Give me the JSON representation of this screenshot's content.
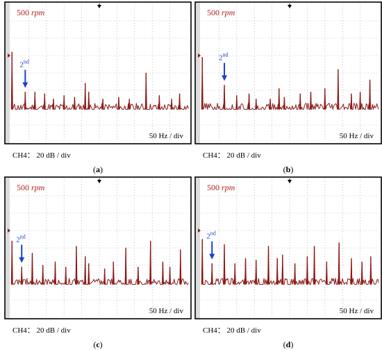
{
  "colors": {
    "trace": "#8b1a1a",
    "rpm_text": "#b41e1e",
    "annotation": "#1a3fd6",
    "grid": "#9a9a9a",
    "frame": "#000000"
  },
  "chart_data": [
    {
      "type": "line",
      "panel": "(a)",
      "rpm_label": "500 rpm",
      "annotation": "2nd",
      "x_scale_label": "50 Hz / div",
      "y_scale_label": "CH4： 20 dB / div",
      "grid": true,
      "x_divisions": 10,
      "y_divisions": 8,
      "baseline_div": 1.9,
      "spikes": [
        {
          "x": 0.05,
          "h": 3.3
        },
        {
          "x": 0.8,
          "h": 1.0
        },
        {
          "x": 1.35,
          "h": 1.0
        },
        {
          "x": 1.9,
          "h": 0.9
        },
        {
          "x": 2.4,
          "h": 0.6
        },
        {
          "x": 3.0,
          "h": 0.8
        },
        {
          "x": 3.6,
          "h": 0.7
        },
        {
          "x": 4.2,
          "h": 1.5
        },
        {
          "x": 4.4,
          "h": 1.0
        },
        {
          "x": 5.2,
          "h": 0.6
        },
        {
          "x": 6.1,
          "h": 0.7
        },
        {
          "x": 6.7,
          "h": 0.6
        },
        {
          "x": 7.65,
          "h": 2.1
        },
        {
          "x": 8.4,
          "h": 0.8
        },
        {
          "x": 9.1,
          "h": 0.6
        },
        {
          "x": 9.55,
          "h": 0.9
        }
      ]
    },
    {
      "type": "line",
      "panel": "(b)",
      "rpm_label": "500 rpm",
      "annotation": "2nd",
      "x_scale_label": "50 Hz / div",
      "y_scale_label": "CH4： 20 dB / div",
      "grid": true,
      "x_divisions": 10,
      "y_divisions": 8,
      "baseline_div": 1.9,
      "spikes": [
        {
          "x": 0.05,
          "h": 3.0
        },
        {
          "x": 1.3,
          "h": 1.4
        },
        {
          "x": 2.0,
          "h": 0.8
        },
        {
          "x": 2.7,
          "h": 0.9
        },
        {
          "x": 3.1,
          "h": 0.6
        },
        {
          "x": 3.9,
          "h": 0.6
        },
        {
          "x": 4.4,
          "h": 1.2
        },
        {
          "x": 4.7,
          "h": 0.7
        },
        {
          "x": 5.6,
          "h": 0.9
        },
        {
          "x": 6.2,
          "h": 1.0
        },
        {
          "x": 7.0,
          "h": 1.2
        },
        {
          "x": 7.75,
          "h": 2.3
        },
        {
          "x": 8.5,
          "h": 0.9
        },
        {
          "x": 9.0,
          "h": 1.0
        },
        {
          "x": 9.55,
          "h": 1.7
        }
      ]
    },
    {
      "type": "line",
      "panel": "(c)",
      "rpm_label": "500 rpm",
      "annotation": "2nd",
      "x_scale_label": "50 Hz / div",
      "y_scale_label": "CH4： 20 dB / div",
      "grid": true,
      "x_divisions": 10,
      "y_divisions": 8,
      "baseline_div": 1.9,
      "spikes": [
        {
          "x": 0.05,
          "h": 2.5
        },
        {
          "x": 0.6,
          "h": 1.0
        },
        {
          "x": 1.2,
          "h": 1.8
        },
        {
          "x": 1.8,
          "h": 1.1
        },
        {
          "x": 2.5,
          "h": 1.3
        },
        {
          "x": 3.1,
          "h": 1.0
        },
        {
          "x": 3.7,
          "h": 2.2
        },
        {
          "x": 4.2,
          "h": 1.6
        },
        {
          "x": 4.4,
          "h": 1.2
        },
        {
          "x": 5.3,
          "h": 0.9
        },
        {
          "x": 5.8,
          "h": 1.3
        },
        {
          "x": 6.5,
          "h": 2.1
        },
        {
          "x": 7.2,
          "h": 1.0
        },
        {
          "x": 7.9,
          "h": 2.5
        },
        {
          "x": 8.6,
          "h": 1.3
        },
        {
          "x": 9.0,
          "h": 1.0
        },
        {
          "x": 9.6,
          "h": 2.0
        }
      ]
    },
    {
      "type": "line",
      "panel": "(d)",
      "rpm_label": "500 rpm",
      "annotation": "2nd",
      "x_scale_label": "50 Hz / div",
      "y_scale_label": "CH4： 20 dB / div",
      "grid": true,
      "x_divisions": 10,
      "y_divisions": 8,
      "baseline_div": 1.9,
      "spikes": [
        {
          "x": 0.05,
          "h": 2.6
        },
        {
          "x": 0.6,
          "h": 1.2
        },
        {
          "x": 1.3,
          "h": 2.3
        },
        {
          "x": 1.9,
          "h": 1.2
        },
        {
          "x": 2.5,
          "h": 1.5
        },
        {
          "x": 3.1,
          "h": 1.4
        },
        {
          "x": 3.8,
          "h": 2.2
        },
        {
          "x": 4.3,
          "h": 1.5
        },
        {
          "x": 4.6,
          "h": 1.7
        },
        {
          "x": 5.3,
          "h": 1.2
        },
        {
          "x": 6.0,
          "h": 1.6
        },
        {
          "x": 6.4,
          "h": 2.2
        },
        {
          "x": 7.1,
          "h": 1.3
        },
        {
          "x": 7.8,
          "h": 2.4
        },
        {
          "x": 8.5,
          "h": 1.5
        },
        {
          "x": 9.1,
          "h": 1.3
        },
        {
          "x": 9.6,
          "h": 1.6
        }
      ]
    }
  ]
}
